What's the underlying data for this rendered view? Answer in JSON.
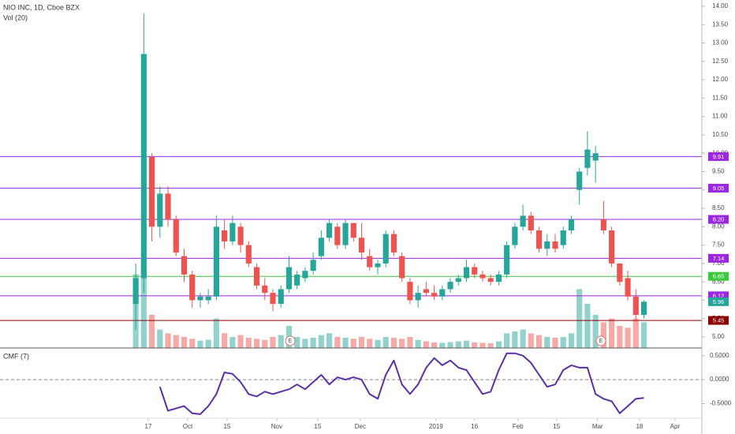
{
  "chart_data": {
    "type": "candlestick",
    "title": "NIO INC, 1D, Cboe BZX",
    "volume_label": "Vol (20)",
    "xlim": [
      -0.5,
      67.25
    ],
    "xticks": [
      {
        "value": 1.55,
        "label": "17"
      },
      {
        "value": 6.44,
        "label": "Oct"
      },
      {
        "value": 11.32,
        "label": "15"
      },
      {
        "value": 17.48,
        "label": "Nov"
      },
      {
        "value": 22.56,
        "label": "15"
      },
      {
        "value": 27.84,
        "label": "Dec"
      },
      {
        "value": 37.22,
        "label": "2019"
      },
      {
        "value": 42.0,
        "label": "16"
      },
      {
        "value": 47.38,
        "label": "Feb"
      },
      {
        "value": 52.17,
        "label": "15"
      },
      {
        "value": 57.25,
        "label": "Mar"
      },
      {
        "value": 62.45,
        "label": "18"
      },
      {
        "value": 66.85,
        "label": "Apr"
      }
    ],
    "ylim": [
      4.7,
      14.17
    ],
    "yticks": [
      {
        "value": 5,
        "label": "5.00"
      },
      {
        "value": 5.5,
        "label": "5.50"
      },
      {
        "value": 6,
        "label": "6.00"
      },
      {
        "value": 6.5,
        "label": "6.50"
      },
      {
        "value": 7,
        "label": "7.00"
      },
      {
        "value": 7.5,
        "label": "7.50"
      },
      {
        "value": 8,
        "label": "8.00"
      },
      {
        "value": 8.5,
        "label": "8.50"
      },
      {
        "value": 9,
        "label": "9.00"
      },
      {
        "value": 9.5,
        "label": "9.50"
      },
      {
        "value": 10,
        "label": "10.00"
      },
      {
        "value": 10.5,
        "label": "10.50"
      },
      {
        "value": 11,
        "label": "11.00"
      },
      {
        "value": 11.5,
        "label": "11.50"
      },
      {
        "value": 12,
        "label": "12.00"
      },
      {
        "value": 12.5,
        "label": "12.50"
      },
      {
        "value": 13,
        "label": "13.00"
      },
      {
        "value": 13.5,
        "label": "13.50"
      },
      {
        "value": 14,
        "label": "14.00"
      }
    ],
    "up_color": "#26a69a",
    "down_color": "#ef5350",
    "open": [
      5.9,
      6.6,
      9.9,
      8.0,
      8.9,
      8.2,
      7.2,
      6.7,
      6.0,
      6.0,
      6.1,
      7.9,
      7.6,
      8.0,
      7.5,
      6.9,
      6.4,
      6.2,
      5.9,
      6.3,
      6.4,
      6.6,
      6.8,
      7.2,
      7.7,
      8.0,
      7.5,
      8.1,
      7.7,
      7.2,
      6.9,
      7.0,
      7.8,
      7.2,
      6.5,
      6.0,
      6.3,
      6.2,
      6.1,
      6.3,
      6.5,
      6.6,
      6.9,
      6.7,
      6.6,
      6.5,
      6.7,
      7.5,
      8.0,
      8.3,
      7.9,
      7.4,
      7.6,
      7.5,
      7.9,
      9.0,
      9.6,
      9.8,
      8.2,
      7.9,
      7.0,
      6.6,
      6.1,
      5.6
    ],
    "high": [
      7.0,
      13.8,
      10.0,
      9.1,
      9.1,
      8.3,
      7.4,
      6.8,
      6.2,
      6.3,
      8.3,
      8.2,
      8.3,
      8.1,
      7.6,
      7.0,
      6.6,
      6.3,
      6.4,
      7.2,
      6.8,
      6.9,
      7.3,
      7.9,
      8.2,
      8.1,
      8.2,
      8.1,
      8.1,
      7.4,
      7.1,
      7.9,
      7.9,
      7.3,
      6.6,
      6.4,
      6.5,
      6.4,
      6.4,
      6.6,
      6.7,
      7.1,
      7.0,
      6.8,
      6.7,
      6.8,
      7.6,
      8.1,
      8.6,
      8.4,
      8.0,
      7.8,
      7.8,
      8.0,
      8.3,
      9.6,
      10.6,
      10.2,
      8.7,
      8.0,
      7.0,
      6.8,
      6.3,
      6.0
    ],
    "low": [
      5.2,
      6.2,
      7.6,
      7.7,
      8.0,
      7.2,
      6.5,
      5.8,
      5.8,
      5.9,
      6.0,
      7.4,
      7.5,
      7.3,
      6.9,
      6.3,
      6.0,
      5.7,
      5.8,
      6.2,
      6.3,
      6.5,
      6.7,
      7.1,
      7.6,
      7.4,
      7.4,
      7.6,
      7.1,
      6.8,
      6.7,
      6.9,
      7.2,
      6.5,
      5.9,
      5.8,
      6.1,
      6.0,
      6.0,
      6.2,
      6.4,
      6.5,
      6.6,
      6.5,
      6.4,
      6.4,
      6.6,
      7.4,
      7.9,
      7.8,
      7.3,
      7.2,
      7.3,
      7.4,
      7.8,
      8.6,
      9.4,
      9.2,
      7.8,
      6.9,
      6.4,
      6.0,
      5.4,
      5.5
    ],
    "close": [
      6.6,
      12.7,
      8.0,
      8.9,
      8.2,
      7.3,
      6.7,
      6.0,
      6.1,
      6.1,
      8.0,
      7.6,
      8.1,
      7.5,
      7.0,
      6.4,
      6.2,
      5.9,
      6.3,
      6.9,
      6.7,
      6.8,
      7.1,
      7.7,
      8.1,
      7.5,
      8.1,
      7.7,
      7.3,
      6.9,
      7.0,
      7.8,
      7.3,
      6.6,
      6.0,
      6.2,
      6.2,
      6.1,
      6.3,
      6.5,
      6.6,
      6.9,
      6.7,
      6.6,
      6.5,
      6.7,
      7.5,
      8.0,
      8.3,
      7.9,
      7.4,
      7.6,
      7.4,
      7.9,
      8.2,
      9.5,
      10.1,
      10.0,
      7.9,
      7.0,
      6.5,
      6.1,
      5.6,
      5.96
    ],
    "vlim": [
      0,
      300
    ],
    "volume": [
      200,
      230,
      90,
      50,
      40,
      35,
      30,
      25,
      20,
      22,
      80,
      40,
      30,
      35,
      28,
      25,
      22,
      30,
      35,
      60,
      30,
      25,
      28,
      35,
      40,
      30,
      28,
      25,
      30,
      25,
      22,
      30,
      28,
      25,
      30,
      22,
      18,
      15,
      14,
      16,
      18,
      20,
      15,
      14,
      13,
      18,
      40,
      45,
      50,
      40,
      35,
      30,
      28,
      30,
      40,
      160,
      120,
      90,
      70,
      80,
      60,
      55,
      80,
      70
    ],
    "levels": [
      {
        "value": 9.91,
        "value_label": "9.91",
        "color": "#9c27e0"
      },
      {
        "value": 9.05,
        "value_label": "9.05",
        "color": "#9c27e0"
      },
      {
        "value": 8.2,
        "value_label": "8.20",
        "color": "#9c27e0"
      },
      {
        "value": 7.14,
        "value_label": "7.14",
        "color": "#9c27e0"
      },
      {
        "value": 6.65,
        "value_label": "6.65",
        "color": "#3cc83c"
      },
      {
        "value": 6.12,
        "value_label": "6.12",
        "color": "#9c27e0"
      },
      {
        "value": 5.45,
        "value_label": "5.45",
        "color": "#8b0000"
      }
    ],
    "last_price_color": "#26a69a",
    "earnings": [
      "E",
      "E"
    ],
    "indicator": {
      "type": "line",
      "title": "CMF (7)",
      "color": "#5b2fa8",
      "ylim": [
        -1.1,
        0.66
      ],
      "yticks": [
        {
          "value": 0.5,
          "label": "0.5000"
        },
        {
          "value": 0,
          "label": "0.0000"
        },
        {
          "value": -0.5,
          "label": "-0.5000"
        }
      ],
      "zero_line": true,
      "values": [
        null,
        null,
        null,
        -0.15,
        -0.65,
        -0.6,
        -0.55,
        -0.7,
        -0.72,
        -0.55,
        -0.3,
        0.15,
        0.12,
        -0.05,
        -0.3,
        -0.35,
        -0.25,
        -0.3,
        -0.25,
        -0.2,
        -0.1,
        -0.2,
        -0.05,
        0.1,
        -0.1,
        0.05,
        0.0,
        0.05,
        0.0,
        -0.3,
        -0.4,
        0.1,
        0.4,
        -0.1,
        -0.3,
        -0.1,
        0.25,
        0.45,
        0.3,
        0.4,
        0.25,
        0.2,
        -0.05,
        -0.3,
        -0.25,
        0.2,
        0.55,
        0.55,
        0.5,
        0.35,
        0.1,
        -0.15,
        -0.1,
        0.2,
        0.3,
        0.25,
        0.25,
        -0.3,
        -0.4,
        -0.45,
        -0.7,
        -0.55,
        -0.4,
        -0.38
      ]
    }
  }
}
